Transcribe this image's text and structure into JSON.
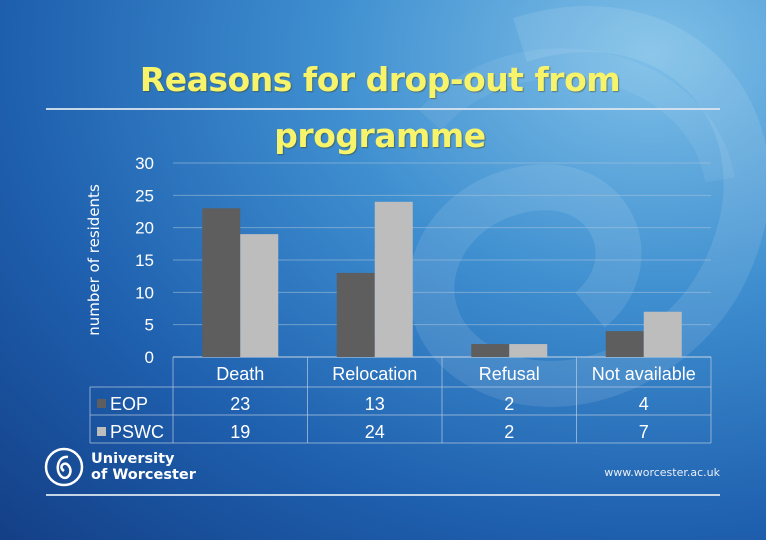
{
  "page": {
    "title": "Reasons for drop-out from programme",
    "logo_line1": "University",
    "logo_line2": "of Worcester",
    "website": "www.worcester.ac.uk"
  },
  "colors": {
    "eop": "#5e5e5e",
    "pswc": "#bdbdbd",
    "title": "#f7f36a",
    "axis_text": "#ffffff"
  },
  "chart_data": {
    "type": "bar",
    "title": "Reasons for drop-out from programme",
    "xlabel": "",
    "ylabel": "number of residents",
    "ylim": [
      0,
      30
    ],
    "yticks": [
      0,
      5,
      10,
      15,
      20,
      25,
      30
    ],
    "grid": true,
    "categories": [
      "Death",
      "Relocation",
      "Refusal",
      "Not available"
    ],
    "series": [
      {
        "name": "EOP",
        "values": [
          23,
          13,
          2,
          4
        ]
      },
      {
        "name": "PSWC",
        "values": [
          19,
          24,
          2,
          7
        ]
      }
    ],
    "data_table": true
  }
}
